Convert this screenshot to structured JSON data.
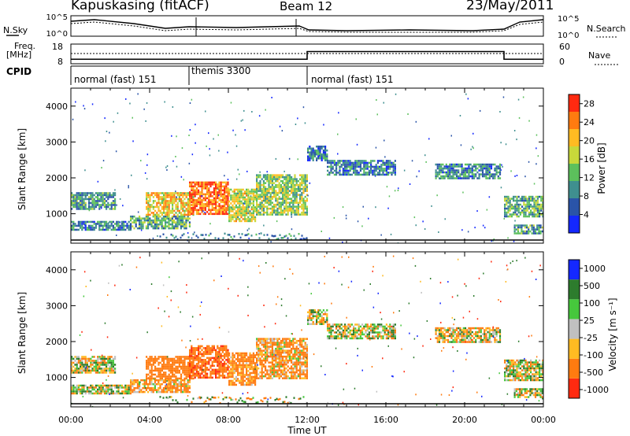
{
  "header": {
    "station": "Kapuskasing (fitACF)",
    "beam": "Beam 12",
    "date": "23/May/2011"
  },
  "noise_panel": {
    "left_label": "N.Sky",
    "right_label": "N.Search",
    "ticks_left": [
      "10^5",
      "10^0"
    ],
    "ticks_right": [
      "10^5",
      "10^0"
    ]
  },
  "freq_panel": {
    "left_label_1": "Freq.",
    "left_label_2": "[MHz]",
    "ticks_left": [
      "18",
      "8"
    ],
    "ticks_right": [
      "60",
      "0"
    ],
    "right_label": "Nave"
  },
  "cpid": {
    "label": "CPID",
    "segments": [
      {
        "name": "normal (fast) 151",
        "start_hour": 0,
        "end_hour": 6
      },
      {
        "name": "themis 3300",
        "start_hour": 6,
        "end_hour": 12
      },
      {
        "name": "normal (fast) 151",
        "start_hour": 12,
        "end_hour": 24
      }
    ]
  },
  "x_axis": {
    "label": "Time UT",
    "ticks": [
      "00:00",
      "04:00",
      "08:00",
      "12:00",
      "16:00",
      "20:00",
      "00:00"
    ]
  },
  "power_panel": {
    "ylabel": "Slant Range [km]",
    "yticks": [
      "1000",
      "2000",
      "3000",
      "4000"
    ],
    "colorbar_label": "Power [dB]",
    "colorbar_ticks": [
      "4",
      "8",
      "12",
      "16",
      "20",
      "24",
      "28"
    ]
  },
  "velocity_panel": {
    "ylabel": "Slant Range [km]",
    "yticks": [
      "1000",
      "2000",
      "3000",
      "4000"
    ],
    "colorbar_label": "Velocity [m s⁻¹]",
    "colorbar_ticks": [
      "1000",
      "500",
      "100",
      "25",
      "-25",
      "-100",
      "-500",
      "-1000"
    ]
  },
  "chart_data": {
    "type": "heatmap",
    "x_range_hours": [
      0,
      24
    ],
    "y_range_km": [
      180,
      4500
    ],
    "power_range_db": [
      0,
      30
    ],
    "power_colors": [
      "#1428ff",
      "#2a54a8",
      "#3f8f8f",
      "#5cc05c",
      "#c8d83a",
      "#ffbb22",
      "#ff7b10",
      "#ff2a10"
    ],
    "velocity_colors": [
      "#1428ff",
      "#2d7c2d",
      "#46c83c",
      "#c0c0c0",
      "#ffbb22",
      "#ff7b10",
      "#ff2a10"
    ],
    "echo_regions": [
      {
        "t0": 0.0,
        "t1": 2.2,
        "r0": 1150,
        "r1": 1600,
        "power": 10,
        "velocity": 0
      },
      {
        "t0": 0.0,
        "t1": 3.0,
        "r0": 550,
        "r1": 800,
        "power": 8,
        "velocity": 0
      },
      {
        "t0": 3.0,
        "t1": 6.0,
        "r0": 600,
        "r1": 950,
        "power": 12,
        "velocity": -150
      },
      {
        "t0": 3.8,
        "t1": 6.2,
        "r0": 950,
        "r1": 1600,
        "power": 20,
        "velocity": -300
      },
      {
        "t0": 6.0,
        "t1": 8.0,
        "r0": 1000,
        "r1": 1900,
        "power": 25,
        "velocity": -400
      },
      {
        "t0": 8.0,
        "t1": 9.4,
        "r0": 800,
        "r1": 1700,
        "power": 17,
        "velocity": -200
      },
      {
        "t0": 9.4,
        "t1": 12.0,
        "r0": 1000,
        "r1": 2100,
        "power": 15,
        "velocity": -150
      },
      {
        "t0": 12.0,
        "t1": 13.0,
        "r0": 2500,
        "r1": 2900,
        "power": 8,
        "velocity": 0
      },
      {
        "t0": 13.0,
        "t1": 16.5,
        "r0": 2100,
        "r1": 2500,
        "power": 8,
        "velocity": 0
      },
      {
        "t0": 18.5,
        "t1": 21.8,
        "r0": 2000,
        "r1": 2400,
        "power": 9,
        "velocity": -50
      },
      {
        "t0": 22.0,
        "t1": 24.0,
        "r0": 900,
        "r1": 1500,
        "power": 12,
        "velocity": 0
      },
      {
        "t0": 22.5,
        "t1": 24.0,
        "r0": 450,
        "r1": 700,
        "power": 10,
        "velocity": 0
      }
    ],
    "frequency_mhz": [
      {
        "t0": 0,
        "t1": 12,
        "value": 10.3
      },
      {
        "t0": 12,
        "t1": 22,
        "value": 14.2
      },
      {
        "t0": 22,
        "t1": 24,
        "value": 10.3
      }
    ]
  },
  "colors": {
    "frame": "#000000",
    "background": "#ffffff"
  }
}
